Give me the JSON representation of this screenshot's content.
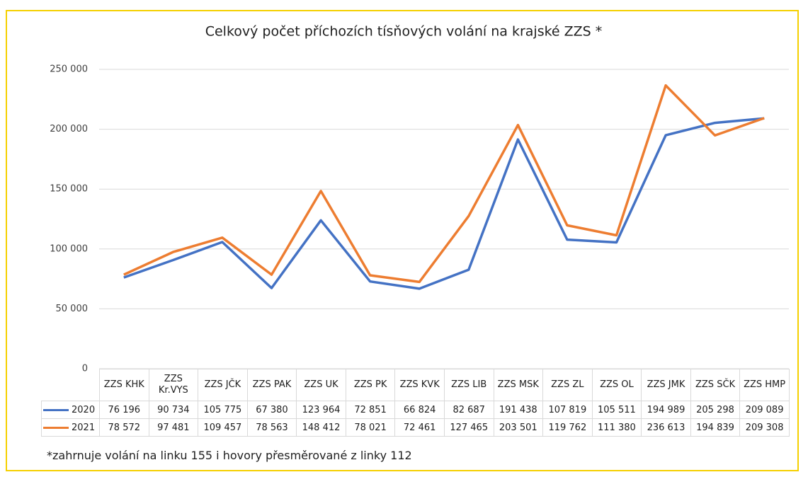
{
  "chart_data": {
    "type": "line",
    "title": "Celkový počet příchozích tísňových volání na krajské ZZS *",
    "note": "*zahrnuje volání na linku 155 i hovory přesměrované z linky 112",
    "categories": [
      "ZZS KHK",
      "ZZS Kr.VYS",
      "ZZS JČK",
      "ZZS PAK",
      "ZZS UK",
      "ZZS PK",
      "ZZS KVK",
      "ZZS LIB",
      "ZZS MSK",
      "ZZS ZL",
      "ZZS OL",
      "ZZS JMK",
      "ZZS SČK",
      "ZZS HMP"
    ],
    "series": [
      {
        "name": "2020",
        "color": "#4472c4",
        "values": [
          76196,
          90734,
          105775,
          67380,
          123964,
          72851,
          66824,
          82687,
          191438,
          107819,
          105511,
          194989,
          205298,
          209089
        ],
        "value_labels": [
          "76 196",
          "90 734",
          "105 775",
          "67 380",
          "123 964",
          "72 851",
          "66 824",
          "82 687",
          "191 438",
          "107 819",
          "105 511",
          "194 989",
          "205 298",
          "209 089"
        ]
      },
      {
        "name": "2021",
        "color": "#ed7d31",
        "values": [
          78572,
          97481,
          109457,
          78563,
          148412,
          78021,
          72461,
          127465,
          203501,
          119762,
          111380,
          236613,
          194839,
          209308
        ],
        "value_labels": [
          "78 572",
          "97 481",
          "109 457",
          "78 563",
          "148 412",
          "78 021",
          "72 461",
          "127 465",
          "203 501",
          "119 762",
          "111 380",
          "236 613",
          "194 839",
          "209 308"
        ]
      }
    ],
    "ylim": [
      0,
      250000
    ],
    "yticks": [
      0,
      {
        "value": 50000,
        "label": "50 000"
      },
      {
        "value": 100000,
        "label": "100 000"
      },
      {
        "value": 150000,
        "label": "150 000"
      },
      {
        "value": 200000,
        "label": "200 000"
      },
      {
        "value": 250000,
        "label": "250 000"
      }
    ],
    "grid": true
  }
}
